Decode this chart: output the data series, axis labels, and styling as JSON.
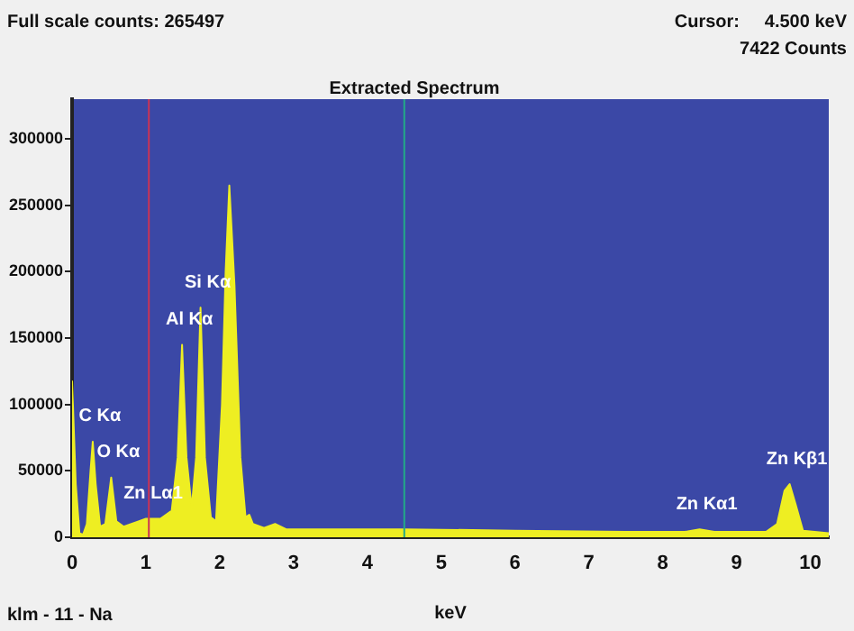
{
  "chart_data": {
    "type": "area",
    "title": "Extracted Spectrum",
    "xlabel": "keV",
    "annotations": [
      "Full scale counts: 265497",
      "Cursor:     4.500 keV",
      "7422 Counts",
      "klm - 11 - Na",
      {
        "text": "C Kα",
        "x": 0.28,
        "y": 72000
      },
      {
        "text": "O Kα",
        "x": 0.53,
        "y": 45000
      },
      {
        "text": "Zn Lα1",
        "x": 1.0,
        "y": 14000
      },
      {
        "text": "Al Kα",
        "x": 1.49,
        "y": 145000
      },
      {
        "text": "Si Kα",
        "x": 1.74,
        "y": 173000
      },
      {
        "text": "Zn Kα1",
        "x": 8.5,
        "y": 6000
      },
      {
        "text": "Zn Kβ1",
        "x": 9.72,
        "y": 40000
      }
    ],
    "x": [
      0,
      0.05,
      0.1,
      0.15,
      0.2,
      0.25,
      0.28,
      0.32,
      0.38,
      0.45,
      0.53,
      0.6,
      0.7,
      0.9,
      1.0,
      1.2,
      1.35,
      1.43,
      1.49,
      1.55,
      1.62,
      1.68,
      1.74,
      1.8,
      1.88,
      1.95,
      2.03,
      2.08,
      2.13,
      2.2,
      2.28,
      2.35,
      2.4,
      2.45,
      2.6,
      2.75,
      2.9,
      3.5,
      4.5,
      6,
      7.5,
      8.3,
      8.5,
      8.7,
      9.4,
      9.55,
      9.65,
      9.72,
      9.8,
      9.9,
      10.25
    ],
    "series": [
      {
        "color": "#eeee22",
        "values": [
          118000,
          40000,
          3000,
          2000,
          10000,
          50000,
          72000,
          40000,
          8000,
          10000,
          45000,
          12000,
          8000,
          12000,
          14000,
          14000,
          20000,
          60000,
          145000,
          60000,
          22000,
          60000,
          173000,
          60000,
          15000,
          12000,
          100000,
          200000,
          265000,
          190000,
          60000,
          15000,
          17000,
          10000,
          7000,
          10000,
          6000,
          6000,
          6000,
          5000,
          4000,
          4000,
          6000,
          4000,
          4000,
          10000,
          35000,
          40000,
          25000,
          5000,
          3000
        ]
      }
    ],
    "xlim": [
      0,
      10.25
    ],
    "xticks": [
      0,
      1,
      2,
      3,
      4,
      5,
      6,
      7,
      8,
      9,
      10
    ],
    "ylim": [
      0,
      330000
    ],
    "yticks": [
      0,
      50000,
      100000,
      150000,
      200000,
      250000,
      300000
    ],
    "ref_lines": [
      {
        "axis": "x",
        "value": 4.5,
        "color": "#22aa88"
      },
      {
        "axis": "x",
        "value": 1.04,
        "color": "#cc3355"
      }
    ],
    "grid": false,
    "legend": false
  }
}
